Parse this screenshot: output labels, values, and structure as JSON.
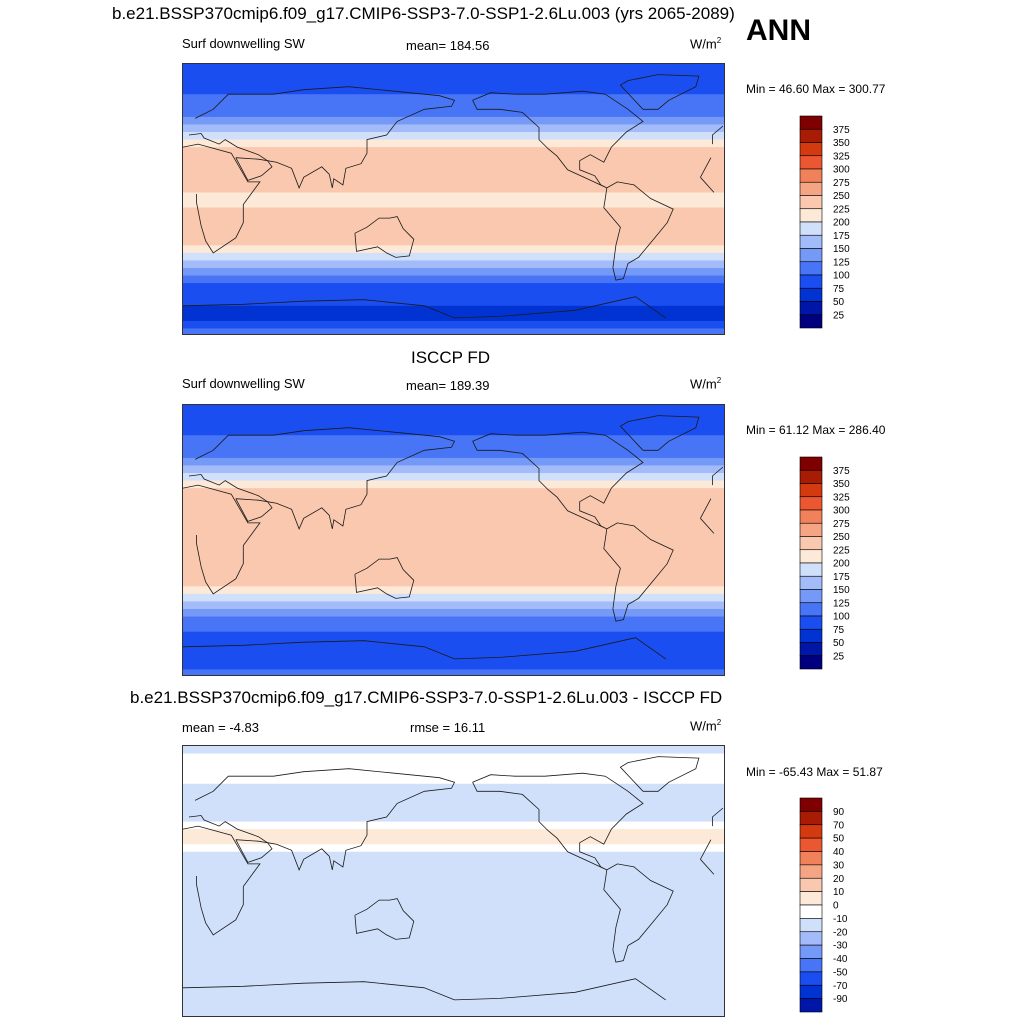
{
  "season": "ANN",
  "colors": {
    "abs_scale": [
      "#00007f",
      "#0016a8",
      "#0033d1",
      "#1a4ef0",
      "#4775f5",
      "#7599f7",
      "#a3bcf9",
      "#d0e0fb",
      "#fde9d8",
      "#f9c8ae",
      "#f5a584",
      "#f0815a",
      "#eb5730",
      "#d43a10",
      "#a81b05",
      "#7f0000"
    ],
    "diff_scale": [
      "#00007f",
      "#0016a8",
      "#0033d1",
      "#1a4ef0",
      "#4775f5",
      "#7599f7",
      "#a3bcf9",
      "#d0e0fb",
      "#ffffff",
      "#fde9d8",
      "#f9c8ae",
      "#f5a584",
      "#f0815a",
      "#eb5730",
      "#d43a10",
      "#a81b05",
      "#7f0000"
    ],
    "land_outline": "#1a1a1a"
  },
  "panels": [
    {
      "title": "b.e21.BSSP370cmip6.f09_g17.CMIP6-SSP3-7.0-SSP1-2.6Lu.003 (yrs 2065-2089)",
      "left_label": "Surf downwelling SW",
      "center_label": "mean= 184.56",
      "units": "W/m",
      "units_sup": "2",
      "minmax": "Min =  46.60 Max = 300.77"
    },
    {
      "title": "ISCCP FD",
      "left_label": "Surf downwelling SW",
      "center_label": "mean= 189.39",
      "units": "W/m",
      "units_sup": "2",
      "minmax": "Min =  61.12 Max = 286.40"
    },
    {
      "title": "b.e21.BSSP370cmip6.f09_g17.CMIP6-SSP3-7.0-SSP1-2.6Lu.003 - ISCCP FD",
      "left_label": "mean =  -4.83",
      "center_label": "rmse =  16.11",
      "units": "W/m",
      "units_sup": "2",
      "minmax": "Min = -65.43 Max =  51.87"
    }
  ],
  "chart_data": [
    {
      "type": "heatmap",
      "title": "b.e21.BSSP370cmip6.f09_g17.CMIP6-SSP3-7.0-SSP1-2.6Lu.003 (yrs 2065-2089)",
      "variable": "Surf downwelling SW",
      "units": "W/m2",
      "mean": 184.56,
      "min": 46.6,
      "max": 300.77,
      "colorbar_levels": [
        375,
        350,
        325,
        300,
        275,
        250,
        225,
        200,
        175,
        150,
        125,
        100,
        75,
        50,
        25
      ],
      "zonal_profile": {
        "lat": [
          90,
          75,
          60,
          45,
          30,
          15,
          0,
          -15,
          -30,
          -45,
          -60,
          -75,
          -90
        ],
        "value": [
          95,
          90,
          110,
          160,
          250,
          240,
          215,
          240,
          235,
          140,
          90,
          60,
          110
        ]
      }
    },
    {
      "type": "heatmap",
      "title": "ISCCP FD",
      "variable": "Surf downwelling SW",
      "units": "W/m2",
      "mean": 189.39,
      "min": 61.12,
      "max": 286.4,
      "colorbar_levels": [
        375,
        350,
        325,
        300,
        275,
        250,
        225,
        200,
        175,
        150,
        125,
        100,
        75,
        50,
        25
      ],
      "zonal_profile": {
        "lat": [
          90,
          75,
          60,
          45,
          30,
          15,
          0,
          -15,
          -30,
          -45,
          -60,
          -75,
          -90
        ],
        "value": [
          100,
          95,
          115,
          165,
          245,
          245,
          225,
          250,
          235,
          145,
          100,
          70,
          115
        ]
      }
    },
    {
      "type": "heatmap",
      "title": "b.e21.BSSP370cmip6.f09_g17.CMIP6-SSP3-7.0-SSP1-2.6Lu.003 - ISCCP FD",
      "units": "W/m2",
      "mean": -4.83,
      "rmse": 16.11,
      "min": -65.43,
      "max": 51.87,
      "colorbar_levels": [
        90,
        70,
        50,
        40,
        30,
        20,
        10,
        0,
        -10,
        -20,
        -30,
        -40,
        -50,
        -70,
        -90
      ],
      "zonal_profile": {
        "lat": [
          90,
          75,
          60,
          45,
          30,
          15,
          0,
          -15,
          -30,
          -45,
          -60,
          -75,
          -90
        ],
        "value": [
          -3,
          5,
          -5,
          -5,
          15,
          -5,
          -10,
          -10,
          0,
          -5,
          -10,
          -10,
          -5
        ]
      }
    }
  ]
}
